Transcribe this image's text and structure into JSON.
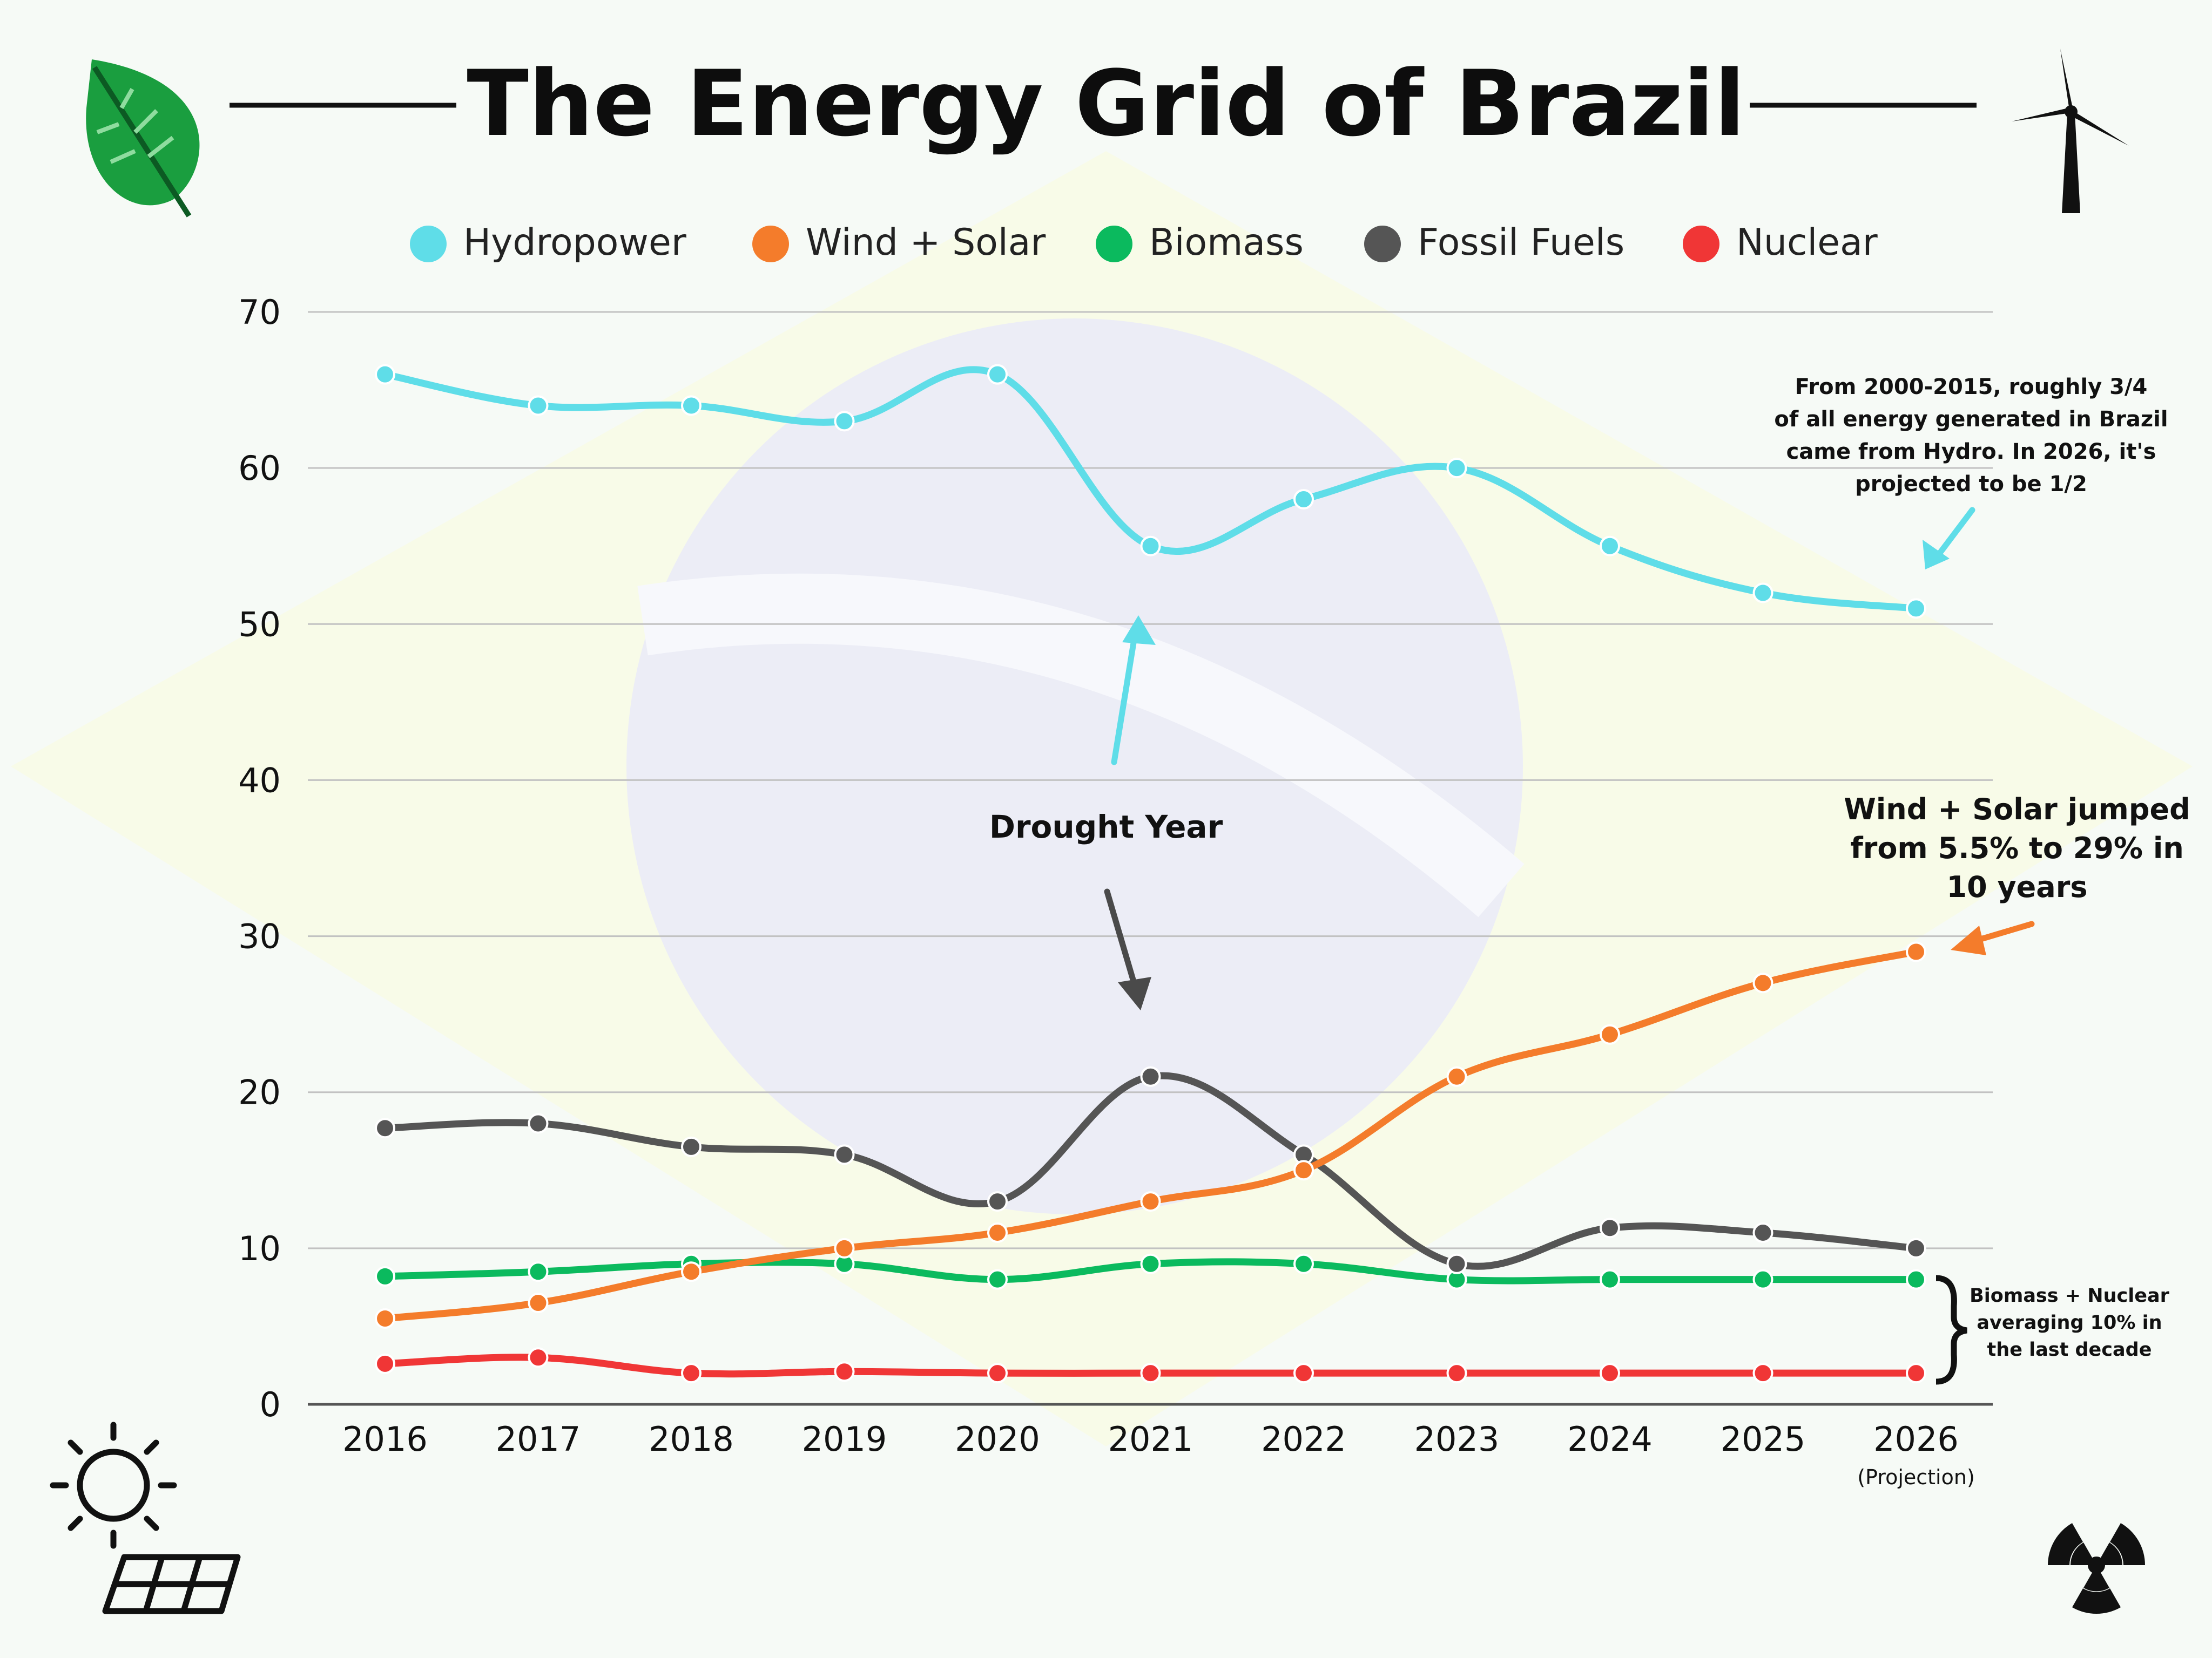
{
  "title": "The Energy Grid of Brazil",
  "icons": {
    "top_left": "leaf-icon",
    "top_right": "wind-turbine-icon",
    "bottom_left_sun": "sun-icon",
    "bottom_left_panel": "solar-panel-icon",
    "bottom_right": "radiation-icon"
  },
  "colors": {
    "hydropower": "#5fdde8",
    "wind_solar": "#f47c2b",
    "biomass": "#0bba5e",
    "fossil": "#555555",
    "nuclear": "#f03636"
  },
  "x_sublabel": "(Projection)",
  "annotations": {
    "hydro_note": [
      "From 2000-2015, roughly 3/4",
      "of all energy generated in Brazil",
      "came from Hydro. In 2026, it's",
      "projected to be 1/2"
    ],
    "drought": "Drought Year",
    "wind_note": [
      "Wind + Solar jumped",
      "from 5.5% to 29% in",
      "10 years"
    ],
    "bio_note": [
      "Biomass + Nuclear",
      "averaging 10% in",
      "the last decade"
    ]
  },
  "chart_data": {
    "type": "line",
    "x": [
      "2016",
      "2017",
      "2018",
      "2019",
      "2020",
      "2021",
      "2022",
      "2023",
      "2024",
      "2025",
      "2026"
    ],
    "ylim": [
      0,
      70
    ],
    "yticks": [
      0,
      10,
      20,
      30,
      40,
      50,
      60,
      70
    ],
    "grid": true,
    "legend_position": "top",
    "series": [
      {
        "name": "Hydropower",
        "color": "#5fdde8",
        "values": [
          66,
          64,
          64,
          63,
          66,
          55,
          58,
          60,
          55,
          52,
          51
        ]
      },
      {
        "name": "Wind + Solar",
        "color": "#f47c2b",
        "values": [
          5.5,
          6.5,
          8.5,
          10,
          11,
          13,
          15,
          21,
          23.7,
          27,
          29
        ]
      },
      {
        "name": "Biomass",
        "color": "#0bba5e",
        "values": [
          8.2,
          8.5,
          9,
          9,
          8,
          9,
          9,
          8,
          8,
          8,
          8
        ]
      },
      {
        "name": "Fossil Fuels",
        "color": "#555555",
        "values": [
          17.7,
          18,
          16.5,
          16,
          13,
          21,
          16,
          9,
          11.3,
          11,
          10
        ]
      },
      {
        "name": "Nuclear",
        "color": "#f03636",
        "values": [
          2.6,
          3,
          2,
          2.1,
          2,
          2,
          2,
          2,
          2,
          2,
          2
        ]
      }
    ]
  }
}
